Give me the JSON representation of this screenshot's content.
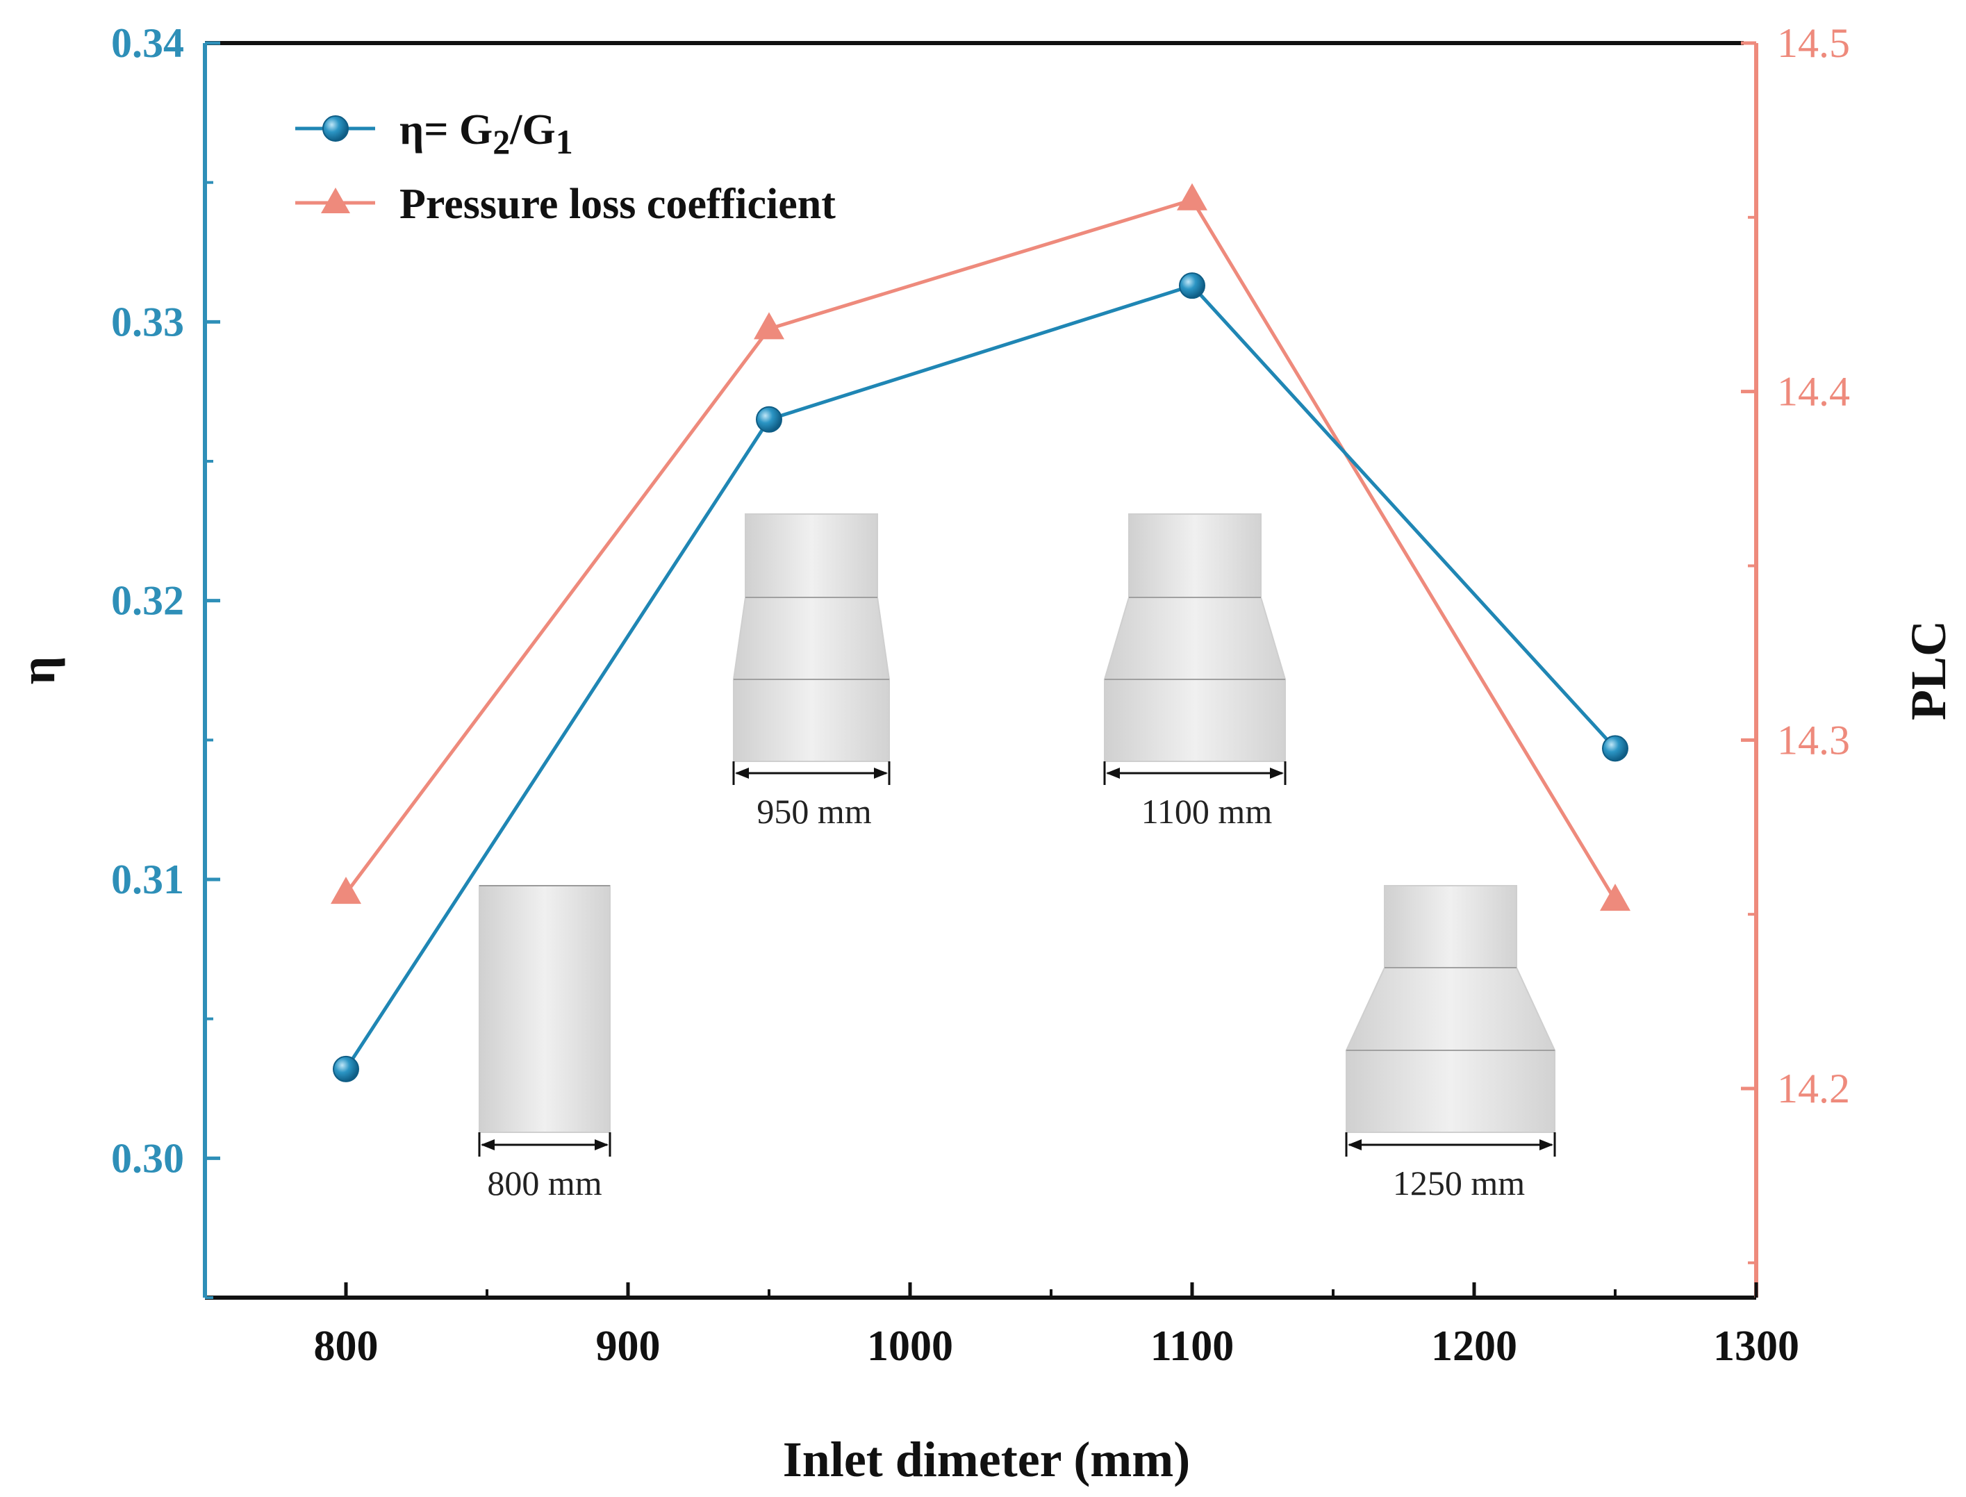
{
  "chart_data": {
    "type": "line",
    "x": [
      800,
      950,
      1100,
      1250
    ],
    "xlabel": "Inlet dimeter (mm)",
    "xlim": [
      750,
      1300
    ],
    "xticks": [
      "800",
      "900",
      "1000",
      "1100",
      "1200",
      "1300"
    ],
    "ylabel_left": "η",
    "ylim_left": [
      0.295,
      0.34
    ],
    "yticks_left": [
      "0.30",
      "0.31",
      "0.32",
      "0.33",
      "0.34"
    ],
    "ylabel_right": "PLC",
    "ylim_right": [
      14.14,
      14.5
    ],
    "yticks_right": [
      "14.2",
      "14.3",
      "14.4",
      "14.5"
    ],
    "series": [
      {
        "name": "η= G2/G1",
        "name_parts": {
          "prefix": "η= G",
          "sub1": "2",
          "mid": "/G",
          "sub2": "1"
        },
        "axis": "left",
        "marker": "circle",
        "color": "#1f86b4",
        "values": [
          0.3032,
          0.3265,
          0.3313,
          0.3147
        ]
      },
      {
        "name": "Pressure loss coefficient",
        "axis": "right",
        "marker": "triangle",
        "color": "#ee8a7c",
        "values": [
          14.256,
          14.418,
          14.455,
          14.254
        ]
      }
    ],
    "legend_position": "top-left",
    "grid": false
  },
  "insets": [
    {
      "label": "800 mm",
      "shape": "cylinder"
    },
    {
      "label": "950 mm",
      "shape": "reducer-small"
    },
    {
      "label": "1100 mm",
      "shape": "reducer-medium"
    },
    {
      "label": "1250 mm",
      "shape": "reducer-large"
    }
  ]
}
